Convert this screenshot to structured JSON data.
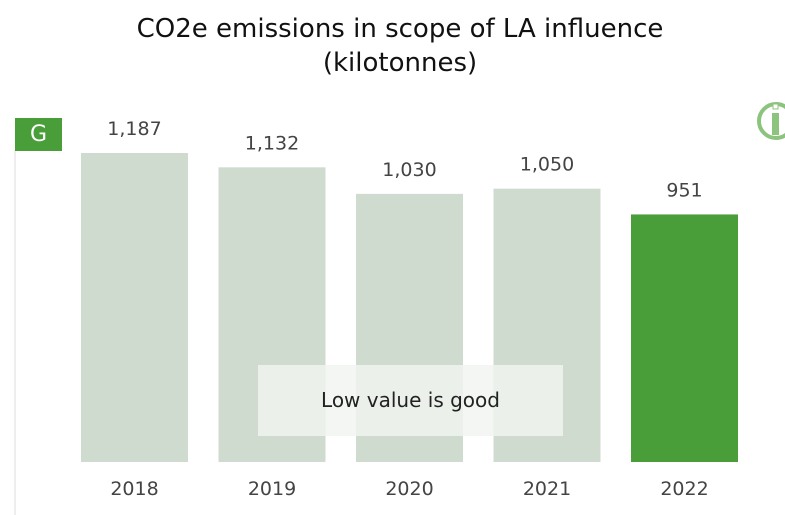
{
  "chart_data": {
    "type": "bar",
    "title": "CO2e emissions in scope of LA influence (kilotonnes)",
    "badge": "G",
    "annotation": "Low value is good",
    "categories": [
      "2018",
      "2019",
      "2020",
      "2021",
      "2022"
    ],
    "values": [
      1187,
      1132,
      1030,
      1050,
      951
    ],
    "value_labels": [
      "1,187",
      "1,132",
      "1,030",
      "1,050",
      "951"
    ],
    "colors": [
      "#d0dbd0",
      "#d0dbd0",
      "#d0dbd0",
      "#d0dbd0",
      "#4a9e3a"
    ]
  }
}
